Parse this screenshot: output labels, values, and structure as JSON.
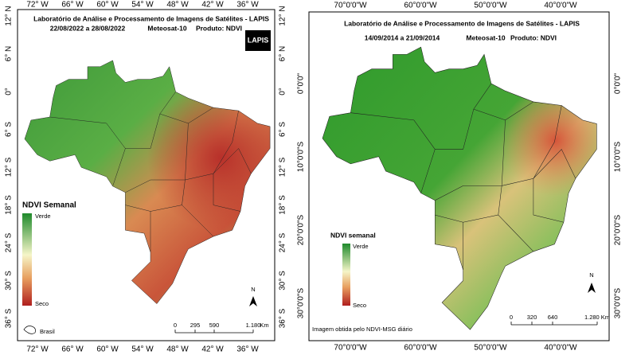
{
  "left_panel": {
    "title": "Laboratório de Análise e Processamento de Imagens de Satélites - LAPIS",
    "period": "22/08/2022  a  28/08/2022",
    "satellite": "Meteosat-10",
    "product": "Produto: NDVI",
    "logo": "LAPIS",
    "top_lon_labels": [
      "72° W",
      "66° W",
      "60° W",
      "54° W",
      "48° W",
      "42° W",
      "36° W"
    ],
    "bottom_lon_labels": [
      "72° W",
      "66° W",
      "60° W",
      "54° W",
      "48° W",
      "42° W",
      "36° W"
    ],
    "left_lat_labels": [
      "12° N",
      "6° N",
      "0°",
      "6° S",
      "12° S",
      "18° S",
      "24° S",
      "30° S",
      "36° S"
    ],
    "right_lat_labels": [
      "12° N",
      "6° N",
      "0°",
      "6° S",
      "12° S",
      "18° S",
      "24° S",
      "30° S",
      "36° S"
    ],
    "legend": {
      "title": "NDVI Semanal",
      "high": "Verde",
      "low": "Seco"
    },
    "north": "N",
    "inset_label": "Brasil",
    "scale_labels": [
      "0",
      "295",
      "590",
      "1.180"
    ],
    "scale_unit": "Km"
  },
  "right_panel": {
    "title": "Laboratório de Análise e Processamento de Imagens de Satélites - LAPIS",
    "period": "14/09/2014  a 21/09/2014",
    "satellite": "Meteosat-10",
    "product": "Produto: NDVI",
    "top_lon_labels": [
      "70°0'0\"W",
      "60°0'0\"W",
      "50°0'0\"W",
      "40°0'0\"W"
    ],
    "bottom_lon_labels": [
      "70°0'0\"W",
      "60°0'0\"W",
      "50°0'0\"W",
      "40°0'0\"W"
    ],
    "left_lat_labels": [
      "0°0'0\"",
      "10°0'0\"S",
      "20°0'0\"S",
      "30°0'0\"S"
    ],
    "right_lat_labels": [
      "0°0'0\"",
      "10°0'0\"S",
      "20°0'0\"S",
      "30°0'0\"S"
    ],
    "legend": {
      "title": "NDVI semanal",
      "high": "Verde",
      "low": "Seco"
    },
    "north": "N",
    "scale_labels": [
      "0",
      "320",
      "640",
      "1.280 Km"
    ],
    "credit": "Imagem obtida pelo NDVI-MSG diário"
  }
}
